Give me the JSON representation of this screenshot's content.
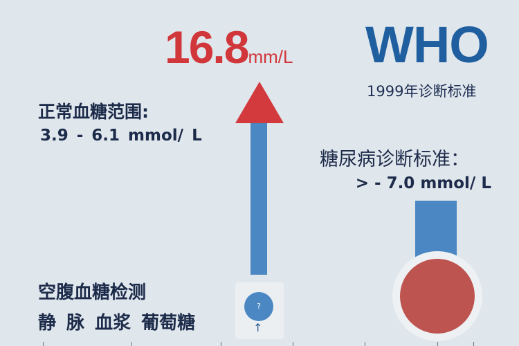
{
  "headline": {
    "value": "16.8",
    "unit": "mm/L",
    "color": "#d0363a"
  },
  "who": {
    "logo": "WHO",
    "subtitle": "1999年诊断标准",
    "color": "#1f5e9f"
  },
  "normal": {
    "title": "正常血糖范围:",
    "range": "3.9 - 6.1  mmol/ L"
  },
  "diabetes": {
    "title": "糖尿病诊断标准：",
    "value": "> - 7.0 mmol/ L"
  },
  "fasting": {
    "line1": "空腹血糖检测",
    "line2": "静 脉 血浆 葡萄糖"
  },
  "indicator": {
    "symbol": "?",
    "arrow": "↑",
    "icon": "up-arrow-icon"
  }
}
